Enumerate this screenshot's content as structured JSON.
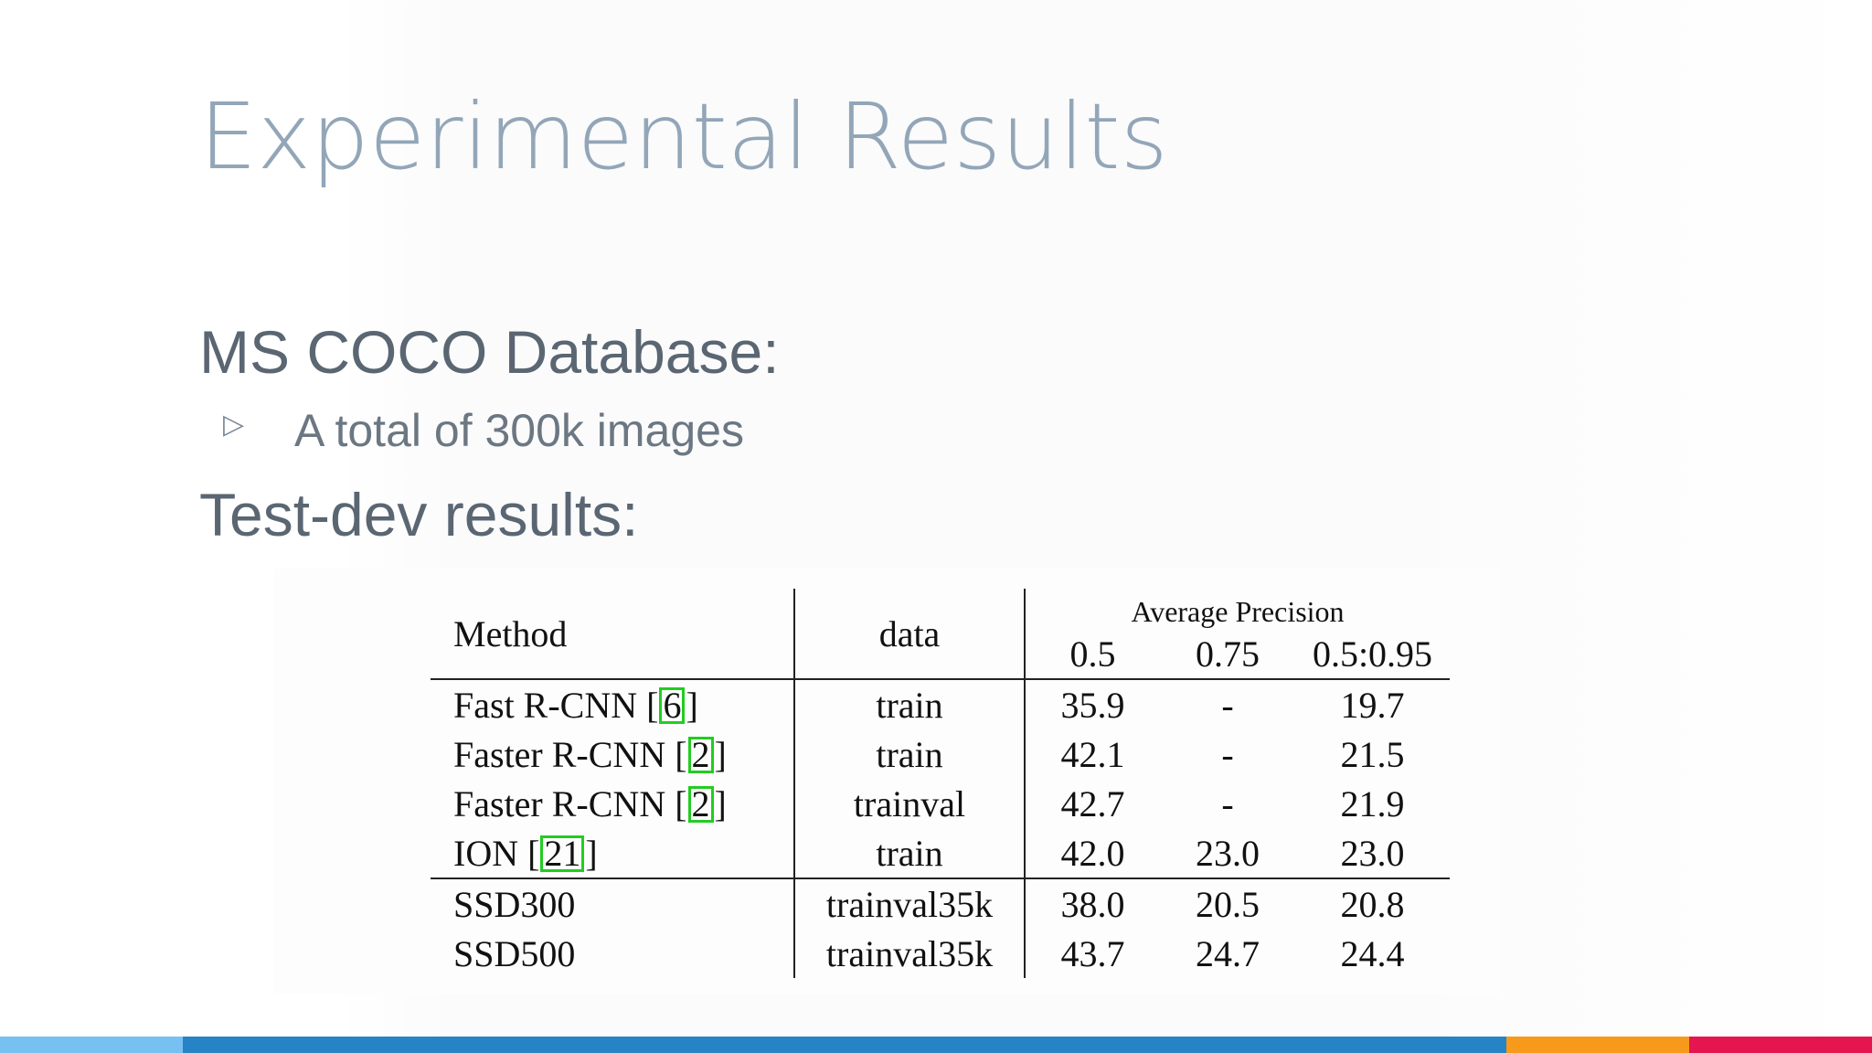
{
  "slide": {
    "title": "Experimental Results",
    "section1_heading": "MS COCO Database:",
    "bullet_marker": "▷",
    "bullet_text": "A total of 300k images",
    "section2_heading": "Test-dev results:"
  },
  "table": {
    "headers": {
      "method": "Method",
      "data": "data",
      "group": "Average Precision",
      "ap_05": "0.5",
      "ap_075": "0.75",
      "ap_05_095": "0.5:0.95"
    },
    "rows": [
      {
        "method": "Fast R-CNN",
        "ref": "6",
        "data": "train",
        "ap_05": "35.9",
        "ap_075": "-",
        "ap_05_095": "19.7"
      },
      {
        "method": "Faster R-CNN",
        "ref": "2",
        "data": "train",
        "ap_05": "42.1",
        "ap_075": "-",
        "ap_05_095": "21.5"
      },
      {
        "method": "Faster R-CNN",
        "ref": "2",
        "data": "trainval",
        "ap_05": "42.7",
        "ap_075": "-",
        "ap_05_095": "21.9"
      },
      {
        "method": "ION",
        "ref": "21",
        "data": "train",
        "ap_05": "42.0",
        "ap_075": "23.0",
        "ap_05_095": "23.0"
      },
      {
        "method": "SSD300",
        "data": "trainval35k",
        "ap_05": "38.0",
        "ap_075": "20.5",
        "ap_05_095": "20.8"
      },
      {
        "method": "SSD500",
        "data": "trainval35k",
        "ap_05": "43.7",
        "ap_075": "24.7",
        "ap_05_095": "24.4"
      }
    ],
    "bracket_open": "[",
    "bracket_close": "]"
  },
  "footer_bar_colors": [
    "#76c1f2",
    "#2684c6",
    "#f79a1c",
    "#e5164f"
  ]
}
